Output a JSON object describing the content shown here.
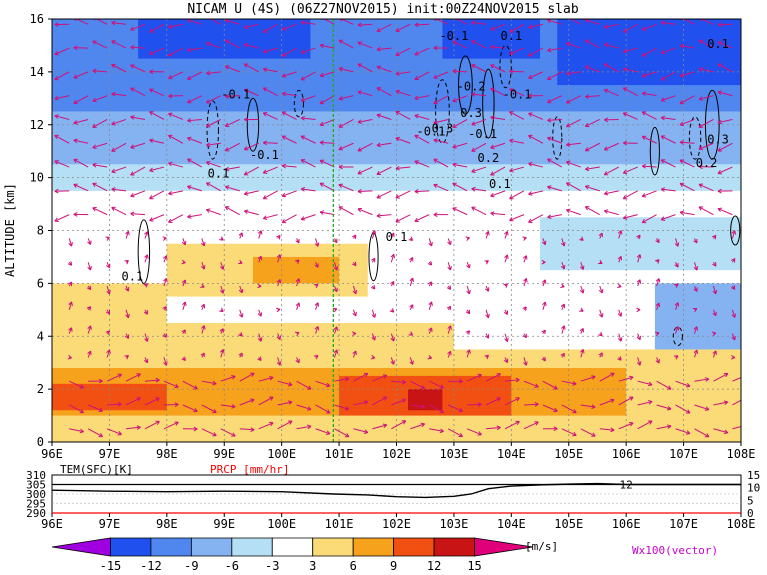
{
  "chart_data": [
    {
      "type": "heatmap",
      "title": "NICAM U (4S) (06Z27NOV2015) init:00Z24NOV2015 slab",
      "ylabel": "ALTITUDE [km]",
      "x_ticks": [
        "96E",
        "97E",
        "98E",
        "99E",
        "100E",
        "101E",
        "102E",
        "103E",
        "104E",
        "105E",
        "106E",
        "107E",
        "108E"
      ],
      "x_values": [
        96,
        97,
        98,
        99,
        100,
        101,
        102,
        103,
        104,
        105,
        106,
        107,
        108
      ],
      "xlim": [
        96,
        108
      ],
      "y_ticks": [
        "0",
        "2",
        "4",
        "6",
        "8",
        "10",
        "12",
        "14",
        "16"
      ],
      "y_values": [
        0,
        2,
        4,
        6,
        8,
        10,
        12,
        14,
        16
      ],
      "ylim": [
        0,
        16
      ],
      "grid": true,
      "reference_line_lon": 100.9,
      "u_wind_regions": [
        {
          "x0": 96,
          "x1": 108,
          "y0": 12.5,
          "y1": 16,
          "value": -9
        },
        {
          "x0": 96,
          "x1": 108,
          "y0": 10.5,
          "y1": 12.5,
          "value": -6
        },
        {
          "x0": 96,
          "x1": 108,
          "y0": 9.5,
          "y1": 10.5,
          "value": -3
        },
        {
          "x0": 97.5,
          "x1": 100.5,
          "y0": 14.5,
          "y1": 16,
          "value": -12
        },
        {
          "x0": 102.8,
          "x1": 104.5,
          "y0": 14.5,
          "y1": 16,
          "value": -15
        },
        {
          "x0": 104.8,
          "x1": 108,
          "y0": 13.5,
          "y1": 16,
          "value": -12
        },
        {
          "x0": 106.5,
          "x1": 108,
          "y0": 3,
          "y1": 6,
          "value": -6
        },
        {
          "x0": 104.5,
          "x1": 108,
          "y0": 6.5,
          "y1": 8.5,
          "value": -3
        },
        {
          "x0": 96,
          "x1": 108,
          "y0": 0,
          "y1": 3.5,
          "value": 3
        },
        {
          "x0": 96,
          "x1": 103,
          "y0": 3.5,
          "y1": 4.5,
          "value": 3
        },
        {
          "x0": 96,
          "x1": 98,
          "y0": 4.5,
          "y1": 6,
          "value": 3
        },
        {
          "x0": 98,
          "x1": 101.5,
          "y0": 5.5,
          "y1": 7.5,
          "value": 3
        },
        {
          "x0": 96,
          "x1": 106,
          "y0": 1,
          "y1": 2.8,
          "value": 6
        },
        {
          "x0": 99.5,
          "x1": 101,
          "y0": 6,
          "y1": 7,
          "value": 6
        },
        {
          "x0": 101,
          "x1": 104,
          "y0": 1,
          "y1": 2.5,
          "value": 9
        },
        {
          "x0": 96,
          "x1": 98,
          "y0": 1.2,
          "y1": 2.2,
          "value": 9
        },
        {
          "x0": 102.2,
          "x1": 102.8,
          "y0": 1.2,
          "y1": 2,
          "value": 12
        }
      ],
      "contour_labels": [
        {
          "x": 104.0,
          "y": 15.2,
          "text": "0.1"
        },
        {
          "x": 103.3,
          "y": 13.3,
          "text": "-0.2"
        },
        {
          "x": 103.0,
          "y": 15.2,
          "text": "-0.1"
        },
        {
          "x": 99.2,
          "y": 13.0,
          "text": "-0.1"
        },
        {
          "x": 99.7,
          "y": 10.7,
          "text": "-0.1"
        },
        {
          "x": 98.9,
          "y": 10.0,
          "text": "0.1"
        },
        {
          "x": 102.6,
          "y": 11.6,
          "text": "-0.1"
        },
        {
          "x": 102.8,
          "y": 11.7,
          "text": "0.3"
        },
        {
          "x": 103.5,
          "y": 11.5,
          "text": "-0.1"
        },
        {
          "x": 103.3,
          "y": 12.3,
          "text": "0.3"
        },
        {
          "x": 103.6,
          "y": 10.6,
          "text": "0.2"
        },
        {
          "x": 104.1,
          "y": 13.0,
          "text": "-0.1"
        },
        {
          "x": 103.8,
          "y": 9.6,
          "text": "0.1"
        },
        {
          "x": 102.0,
          "y": 7.6,
          "text": "0.1"
        },
        {
          "x": 97.4,
          "y": 6.1,
          "text": "0.1"
        },
        {
          "x": 107.6,
          "y": 14.9,
          "text": "0.1"
        },
        {
          "x": 107.6,
          "y": 11.3,
          "text": "0.3"
        },
        {
          "x": 107.4,
          "y": 10.4,
          "text": "0.2"
        }
      ]
    },
    {
      "type": "line",
      "title_left": "TEM(SFC)[K]",
      "title_right": "PRCP [mm/hr]",
      "x_ticks": [
        "96E",
        "97E",
        "98E",
        "99E",
        "100E",
        "101E",
        "102E",
        "103E",
        "104E",
        "105E",
        "106E",
        "107E",
        "108E"
      ],
      "xlim": [
        96,
        108
      ],
      "left_ticks": [
        "310",
        "305",
        "300",
        "295",
        "290"
      ],
      "left_values": [
        310,
        305,
        300,
        295,
        290
      ],
      "right_ticks": [
        "15",
        "10",
        "5",
        "0"
      ],
      "right_values": [
        15,
        10,
        5,
        0
      ],
      "series": [
        {
          "x": [
            96,
            97,
            98,
            99,
            100,
            100.9,
            101.5,
            102,
            102.5,
            103,
            103.3,
            103.6,
            104,
            104.5,
            105,
            105.5,
            106,
            107,
            108
          ],
          "values": [
            302,
            301.5,
            301.2,
            301.5,
            301.2,
            300,
            299.5,
            298.6,
            298.2,
            298.8,
            300,
            302.8,
            304.2,
            304.8,
            305.2,
            305.5,
            305,
            305,
            305
          ]
        },
        {
          "x": [
            96,
            100,
            104,
            108
          ],
          "values": [
            0,
            0,
            0,
            0
          ]
        }
      ],
      "ref_label": "12",
      "ref_level": 305
    }
  ],
  "colorbar": {
    "ticks": [
      "-15",
      "-12",
      "-9",
      "-6",
      "-3",
      "3",
      "6",
      "9",
      "12",
      "15"
    ],
    "unit": "[m/s]",
    "colors": [
      "#a000e0",
      "#2050ee",
      "#4f87ef",
      "#85b2f0",
      "#b5dff4",
      "#ffffff",
      "#fadb78",
      "#f7a21c",
      "#f25012",
      "#c81414",
      "#e0007a"
    ]
  },
  "vector_label": "Wx100(vector)"
}
